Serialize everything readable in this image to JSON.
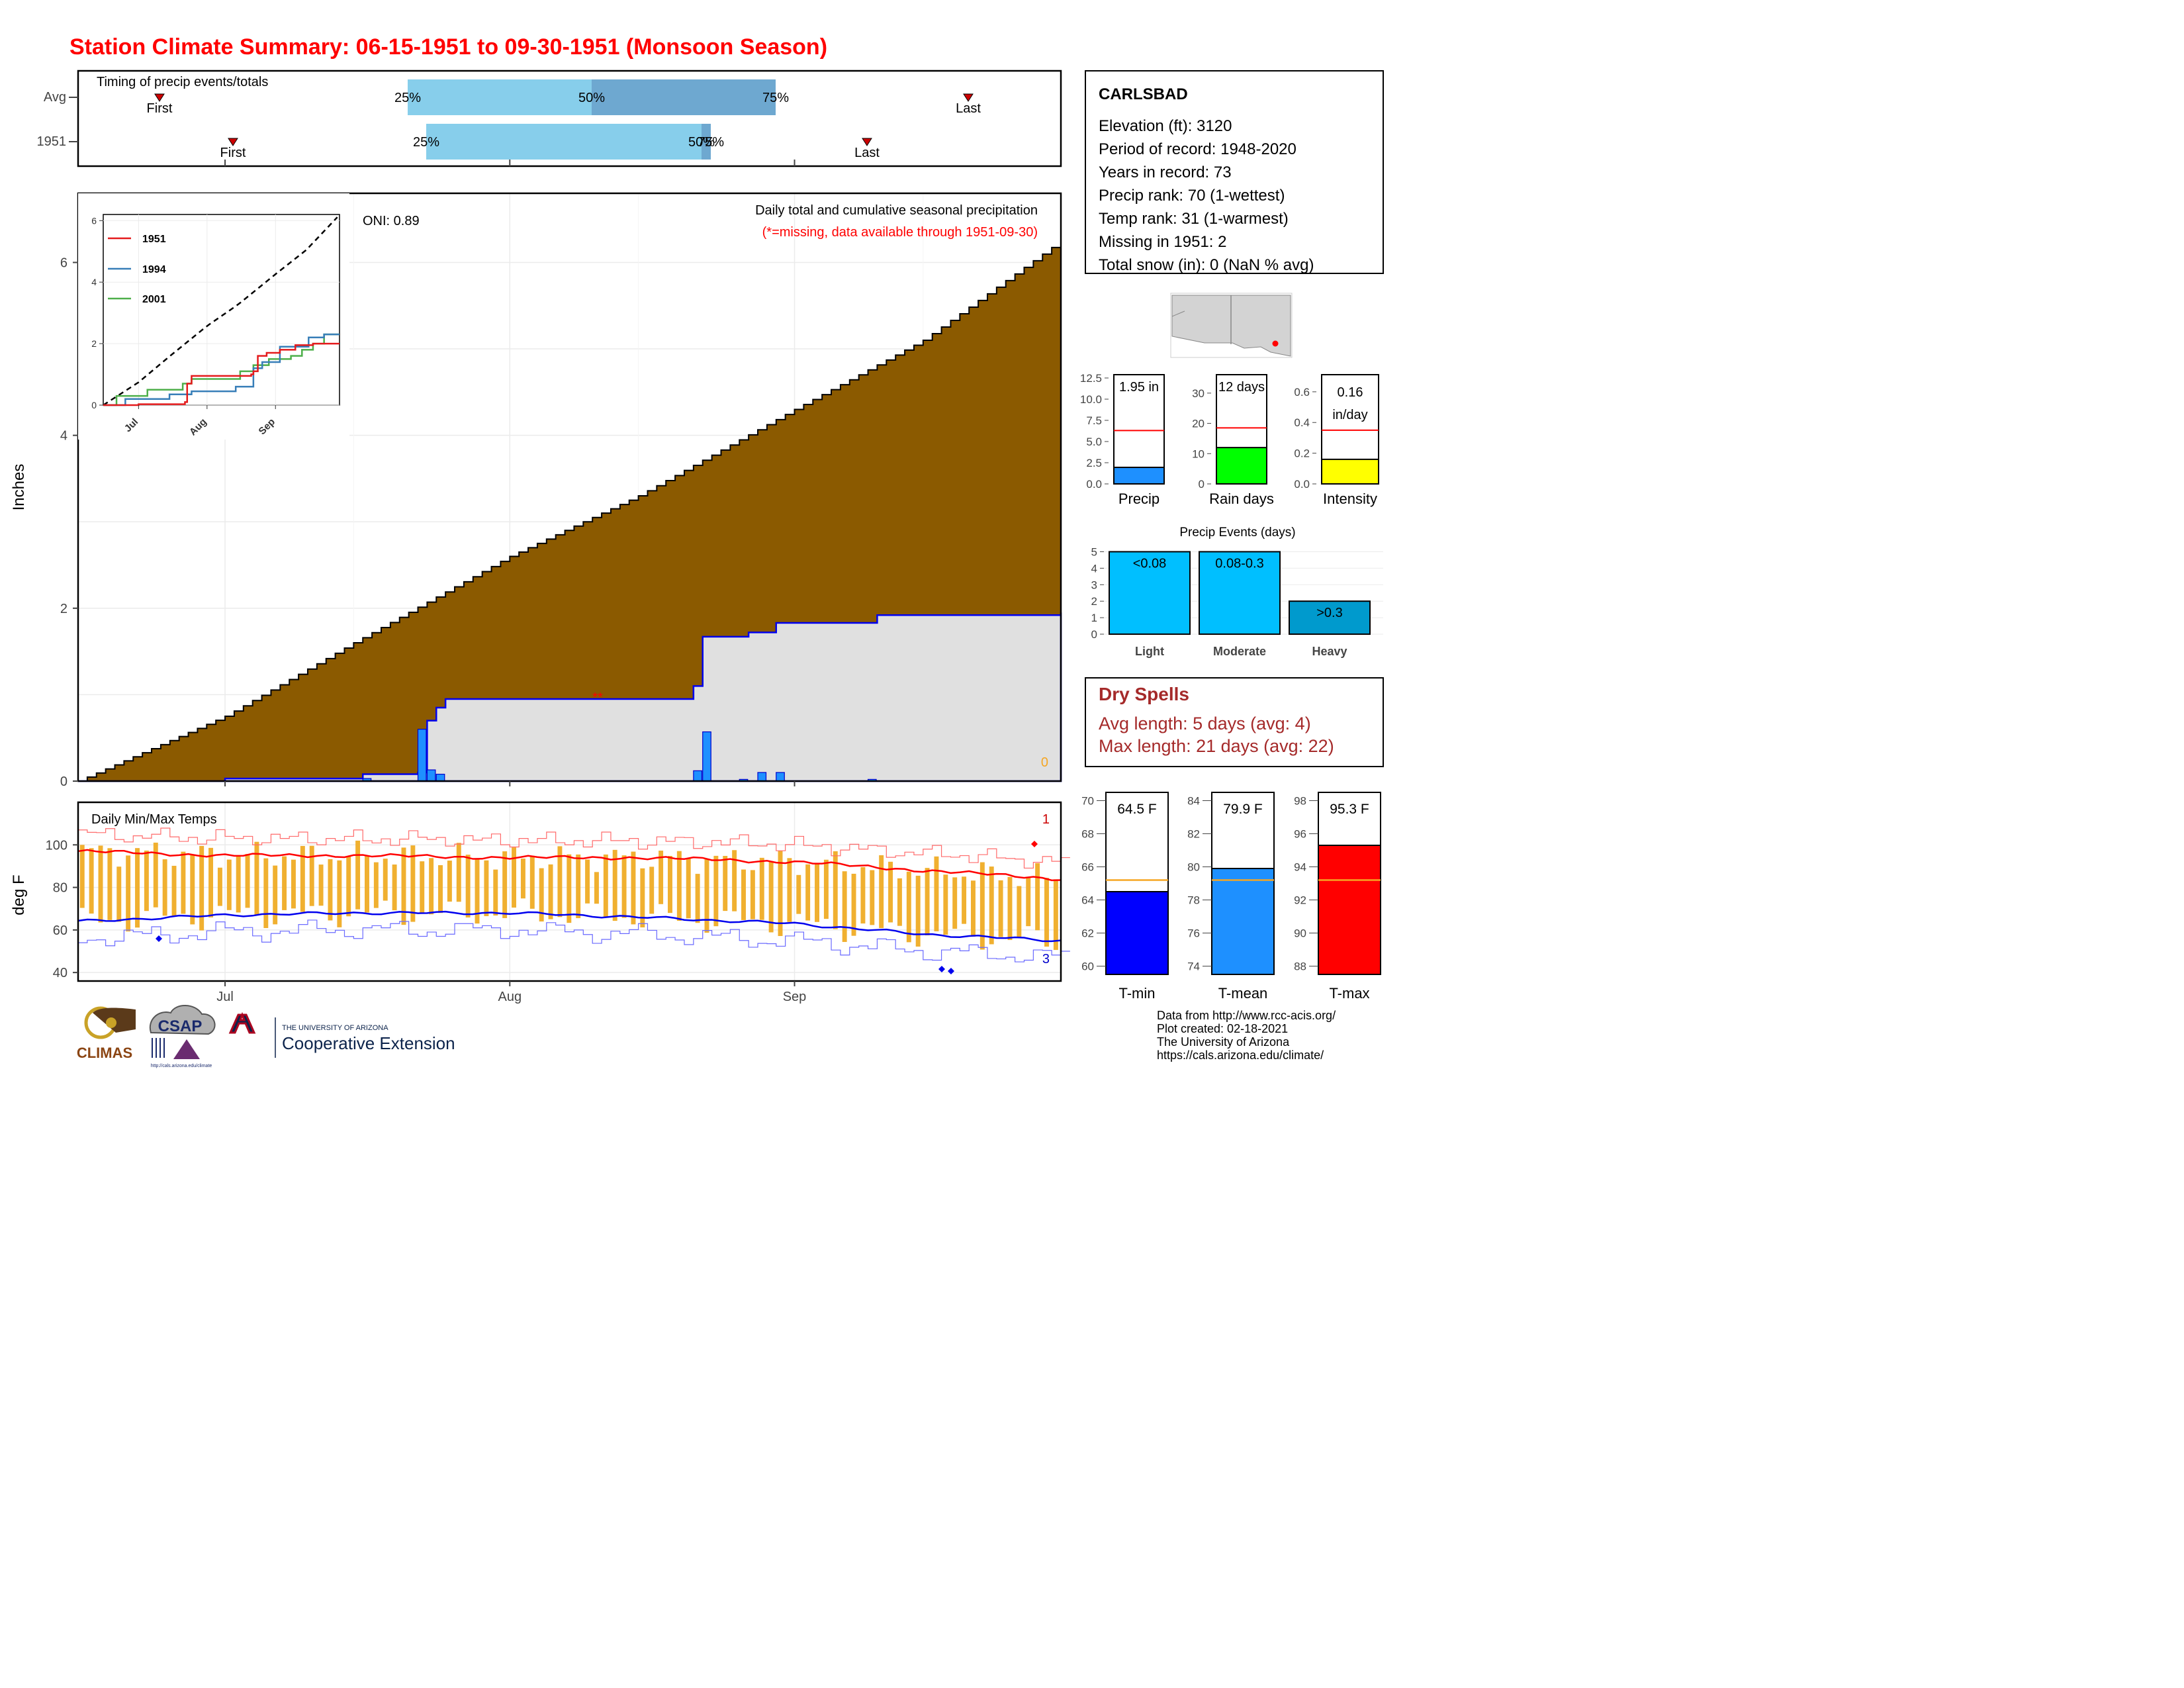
{
  "title": "Station Climate Summary: 06-15-1951 to 09-30-1951 (Monsoon Season)",
  "colors": {
    "title": "#ff0000",
    "precip_fill": "#8b5a00",
    "dryspell": "#a52a2a",
    "light_blue": "#87ceeb",
    "mid_blue": "#6ea8d0",
    "tmax": "#ff0000",
    "tmin": "#0000ff",
    "bar": "#f0b030"
  },
  "timing": {
    "title": "Timing of precip events/totals",
    "rows": [
      {
        "label": "Avg",
        "first_label": "First",
        "last_label": "Last",
        "p25_label": "25%",
        "p50_label": "50%",
        "p75_label": "75%"
      },
      {
        "label": "1951",
        "first_label": "First",
        "last_label": "Last",
        "p25_label": "25%",
        "p50_label": "50%",
        "p75_label": "75%"
      }
    ]
  },
  "station": {
    "name": "CARLSBAD",
    "lines": [
      "Elevation (ft): 3120",
      "Period of record: 1948-2020",
      "Years in record: 73",
      "Precip rank: 70 (1-wettest)",
      "Temp rank: 31 (1-warmest)",
      "Missing in 1951: 2",
      "Total snow (in): 0 (NaN % avg)"
    ]
  },
  "precip_panel": {
    "header": "Daily total and cumulative seasonal precipitation",
    "note": "(*=missing, data available through 1951-09-30)",
    "oni": "ONI: 0.89",
    "ylabel": "Inches",
    "count_label": "0"
  },
  "inset": {
    "legend": [
      "1951",
      "1994",
      "2001"
    ],
    "legend_colors": [
      "#e41a1c",
      "#377eb8",
      "#4daf4a"
    ],
    "yticks": [
      "0",
      "2",
      "4",
      "6"
    ],
    "xticks": [
      "Jul",
      "Aug",
      "Sep"
    ]
  },
  "mini_bars": [
    {
      "label": "Precip",
      "value_text": "1.95 in",
      "yticks": [
        "0.0",
        "2.5",
        "5.0",
        "7.5",
        "10.0",
        "12.5"
      ]
    },
    {
      "label": "Rain days",
      "value_text": "12 days",
      "yticks": [
        "0",
        "10",
        "20",
        "30"
      ]
    },
    {
      "label": "Intensity",
      "value_text": "0.16",
      "value_text2": "in/day",
      "yticks": [
        "0.0",
        "0.2",
        "0.4",
        "0.6"
      ]
    }
  ],
  "events": {
    "title": "Precip Events (days)",
    "categories": [
      "Light",
      "Moderate",
      "Heavy"
    ],
    "labels": [
      "<0.08",
      "0.08-0.3",
      ">0.3"
    ],
    "yticks": [
      "0",
      "1",
      "2",
      "3",
      "4",
      "5"
    ]
  },
  "dry_spells": {
    "title": "Dry Spells",
    "avg": "Avg length: 5 days (avg: 4)",
    "max": "Max length: 21 days (avg: 22)"
  },
  "temp_panel": {
    "title": "Daily Min/Max Temps",
    "ylabel": "deg F",
    "yticks": [
      "40",
      "60",
      "80",
      "100"
    ],
    "xticks": [
      "Jul",
      "Aug",
      "Sep"
    ],
    "hot_count": "1",
    "cold_count": "3"
  },
  "temp_bars": [
    {
      "label": "T-min",
      "value_text": "64.5 F",
      "yticks": [
        "60",
        "62",
        "64",
        "66",
        "68",
        "70"
      ]
    },
    {
      "label": "T-mean",
      "value_text": "79.9 F",
      "yticks": [
        "74",
        "76",
        "78",
        "80",
        "82",
        "84"
      ]
    },
    {
      "label": "T-max",
      "value_text": "95.3 F",
      "yticks": [
        "88",
        "90",
        "92",
        "94",
        "96",
        "98"
      ]
    }
  ],
  "footer": [
    "Data from http://www.rcc-acis.org/",
    "Plot created: 02-18-2021",
    "The University of Arizona",
    "https://cals.arizona.edu/climate/"
  ],
  "logos": {
    "climas": "CLIMAS",
    "csap": "CSAP",
    "csap_url": "http://cals.arizona.edu/climate",
    "ua_small": "THE UNIVERSITY OF ARIZONA",
    "ua_big": "Cooperative Extension"
  },
  "chart_data": [
    {
      "type": "area",
      "title": "Daily total and cumulative seasonal precipitation",
      "ylabel": "Inches",
      "ylim": [
        0,
        6.8
      ],
      "x_range": [
        "1951-06-15",
        "1951-09-30"
      ],
      "series": [
        {
          "name": "Avg cumulative",
          "points": [
            [
              "06-15",
              0.0
            ],
            [
              "07-01",
              0.75
            ],
            [
              "07-15",
              1.6
            ],
            [
              "08-01",
              2.6
            ],
            [
              "08-15",
              3.3
            ],
            [
              "09-01",
              4.3
            ],
            [
              "09-15",
              5.1
            ],
            [
              "09-30",
              6.25
            ]
          ]
        },
        {
          "name": "1951 cumulative",
          "points": [
            [
              "06-15",
              0.0
            ],
            [
              "07-01",
              0.03
            ],
            [
              "07-16",
              0.08
            ],
            [
              "07-22",
              0.1
            ],
            [
              "07-23",
              0.7
            ],
            [
              "07-24",
              0.85
            ],
            [
              "07-25",
              0.95
            ],
            [
              "08-20",
              0.95
            ],
            [
              "08-21",
              1.1
            ],
            [
              "08-22",
              1.67
            ],
            [
              "08-27",
              1.72
            ],
            [
              "08-30",
              1.83
            ],
            [
              "09-10",
              1.92
            ],
            [
              "09-30",
              1.95
            ]
          ]
        },
        {
          "name": "1951 daily",
          "points": [
            [
              "07-16",
              0.03
            ],
            [
              "07-22",
              0.6
            ],
            [
              "07-23",
              0.13
            ],
            [
              "07-24",
              0.08
            ],
            [
              "08-21",
              0.12
            ],
            [
              "08-22",
              0.57
            ],
            [
              "08-26",
              0.02
            ],
            [
              "08-28",
              0.1
            ],
            [
              "08-30",
              0.1
            ],
            [
              "09-09",
              0.02
            ]
          ]
        }
      ],
      "xticks": [
        "Jul",
        "Aug",
        "Sep"
      ],
      "yticks": [
        0,
        2,
        4,
        6
      ]
    },
    {
      "type": "line",
      "title": "Daily Min/Max Temps",
      "ylabel": "deg F",
      "ylim": [
        36,
        120
      ],
      "yticks": [
        40,
        60,
        80,
        100
      ],
      "series": [
        {
          "name": "Avg max",
          "points": [
            [
              "06-15",
              97
            ],
            [
              "07-01",
              95
            ],
            [
              "07-15",
              95
            ],
            [
              "08-01",
              94
            ],
            [
              "08-15",
              94
            ],
            [
              "09-01",
              92
            ],
            [
              "09-15",
              88
            ],
            [
              "09-30",
              84
            ]
          ]
        },
        {
          "name": "Avg min",
          "points": [
            [
              "06-15",
              64
            ],
            [
              "07-01",
              67
            ],
            [
              "07-15",
              68
            ],
            [
              "08-01",
              68
            ],
            [
              "08-15",
              66
            ],
            [
              "09-01",
              63
            ],
            [
              "09-15",
              58
            ],
            [
              "09-30",
              55
            ]
          ]
        },
        {
          "name": "1951 daily range",
          "note": "bars from min to max, approx 65-100 in Jun/Jul declining to 45-90 late Sep"
        }
      ]
    },
    {
      "type": "bar",
      "title": "Precip Events (days)",
      "categories": [
        "Light",
        "Moderate",
        "Heavy"
      ],
      "values": [
        5,
        5,
        2
      ],
      "ylim": [
        0,
        5.3
      ]
    },
    {
      "type": "bar",
      "categories": [
        "Precip",
        "Rain days",
        "Intensity"
      ],
      "values": [
        1.95,
        12,
        0.16
      ],
      "averages": [
        6.3,
        18.5,
        0.35
      ],
      "units": [
        "in",
        "days",
        "in/day"
      ]
    },
    {
      "type": "bar",
      "categories": [
        "T-min",
        "T-mean",
        "T-max"
      ],
      "values": [
        64.5,
        79.9,
        95.3
      ],
      "averages": [
        65.2,
        79.2,
        93.2
      ],
      "units": [
        "F",
        "F",
        "F"
      ]
    }
  ]
}
